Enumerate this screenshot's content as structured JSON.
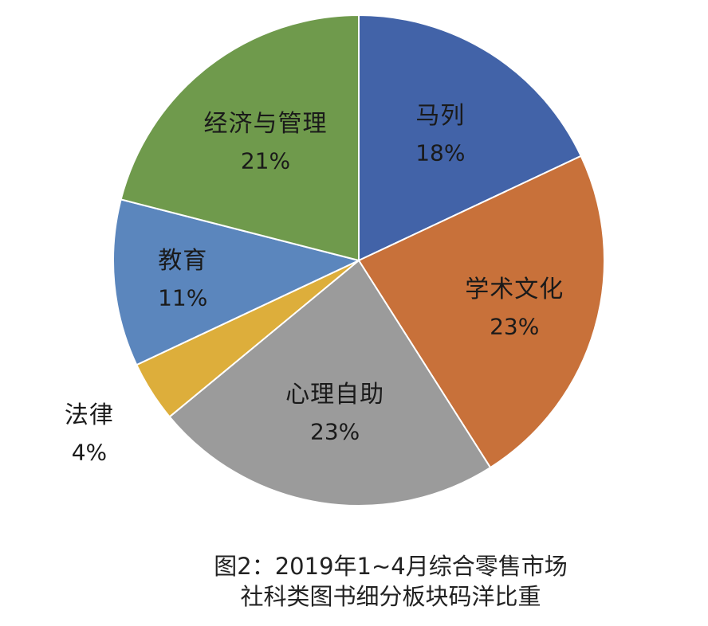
{
  "chart_data": {
    "type": "pie",
    "slices": [
      {
        "label": "马列",
        "percent_label": "18%",
        "value": 18,
        "color": "#4263A8"
      },
      {
        "label": "学术文化",
        "percent_label": "23%",
        "value": 23,
        "color": "#C8713A"
      },
      {
        "label": "心理自助",
        "percent_label": "23%",
        "value": 23,
        "color": "#9B9B9B"
      },
      {
        "label": "法律",
        "percent_label": "4%",
        "value": 4,
        "color": "#DDAE3B"
      },
      {
        "label": "教育",
        "percent_label": "11%",
        "value": 11,
        "color": "#5B86BD"
      },
      {
        "label": "经济与管理",
        "percent_label": "21%",
        "value": 21,
        "color": "#6F9A4C"
      }
    ],
    "caption_line_1": "图2：2019年1~4月综合零售市场",
    "caption_line_2": "社科类图书细分板块码洋比重",
    "legend": "none"
  }
}
